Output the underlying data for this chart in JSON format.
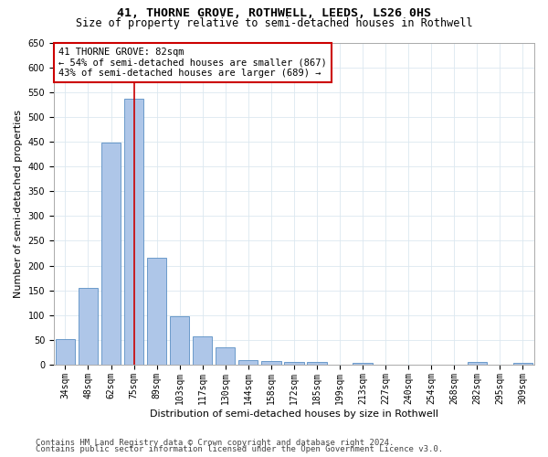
{
  "title": "41, THORNE GROVE, ROTHWELL, LEEDS, LS26 0HS",
  "subtitle": "Size of property relative to semi-detached houses in Rothwell",
  "xlabel": "Distribution of semi-detached houses by size in Rothwell",
  "ylabel": "Number of semi-detached properties",
  "categories": [
    "34sqm",
    "48sqm",
    "62sqm",
    "75sqm",
    "89sqm",
    "103sqm",
    "117sqm",
    "130sqm",
    "144sqm",
    "158sqm",
    "172sqm",
    "185sqm",
    "199sqm",
    "213sqm",
    "227sqm",
    "240sqm",
    "254sqm",
    "268sqm",
    "282sqm",
    "295sqm",
    "309sqm"
  ],
  "values": [
    52,
    155,
    448,
    537,
    215,
    98,
    57,
    35,
    10,
    7,
    5,
    5,
    0,
    4,
    0,
    0,
    0,
    0,
    5,
    0,
    4
  ],
  "bar_color": "#aec6e8",
  "bar_edge_color": "#5a8fc4",
  "highlight_index": 3,
  "highlight_color": "#cc0000",
  "ylim": [
    0,
    650
  ],
  "yticks": [
    0,
    50,
    100,
    150,
    200,
    250,
    300,
    350,
    400,
    450,
    500,
    550,
    600,
    650
  ],
  "property_label": "41 THORNE GROVE: 82sqm",
  "annotation_line1": "← 54% of semi-detached houses are smaller (867)",
  "annotation_line2": "43% of semi-detached houses are larger (689) →",
  "annotation_box_color": "#ffffff",
  "annotation_box_edge": "#cc0000",
  "footer1": "Contains HM Land Registry data © Crown copyright and database right 2024.",
  "footer2": "Contains public sector information licensed under the Open Government Licence v3.0.",
  "background_color": "#ffffff",
  "grid_color": "#dce8f0",
  "title_fontsize": 9.5,
  "subtitle_fontsize": 8.5,
  "ylabel_fontsize": 8,
  "xlabel_fontsize": 8,
  "tick_fontsize": 7,
  "annotation_fontsize": 7.5,
  "footer_fontsize": 6.5
}
